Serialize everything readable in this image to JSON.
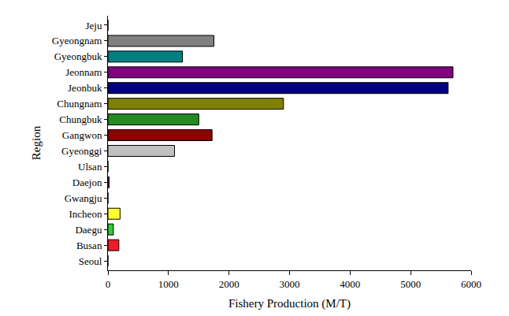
{
  "chart_data": {
    "type": "bar",
    "orientation": "horizontal",
    "x_label": "Fishery Production (M/T)",
    "y_label": "Region",
    "categories": [
      "Seoul",
      "Busan",
      "Daegu",
      "Incheon",
      "Gwangju",
      "Daejon",
      "Ulsan",
      "Gyeonggi",
      "Gangwon",
      "Chungbuk",
      "Chungnam",
      "Jeonbuk",
      "Jeonnam",
      "Gyeongbuk",
      "Gyeongnam",
      "Jeju"
    ],
    "values": [
      0,
      180,
      90,
      200,
      0,
      20,
      0,
      1100,
      1720,
      1500,
      2900,
      5620,
      5700,
      1230,
      1750,
      0
    ],
    "colors": [
      "#000000",
      "#ee1c25",
      "#33cc33",
      "#ffff33",
      "#0000ff",
      "#800080",
      "#ff8000",
      "#c0c0c0",
      "#8b0000",
      "#228b22",
      "#808000",
      "#000080",
      "#800080",
      "#008080",
      "#808080",
      "#00bfff"
    ],
    "xlim": [
      0,
      6000
    ],
    "xticks": [
      0,
      1000,
      2000,
      3000,
      4000,
      5000,
      6000
    ],
    "grid": false
  }
}
